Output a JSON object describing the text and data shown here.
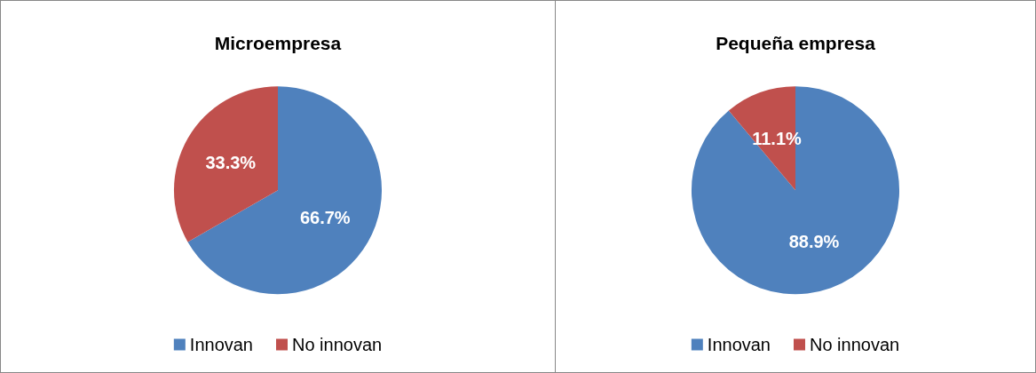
{
  "chart_data": [
    {
      "type": "pie",
      "title": "Microempresa",
      "categories": [
        "Innovan",
        "No innovan"
      ],
      "values": [
        66.7,
        33.3
      ],
      "colors": [
        "#4f81bd",
        "#c0504d"
      ],
      "value_labels": [
        "66.7%",
        "33.3%"
      ],
      "legend": "bottom"
    },
    {
      "type": "pie",
      "title": "Pequeña empresa",
      "categories": [
        "Innovan",
        "No innovan"
      ],
      "values": [
        88.9,
        11.1
      ],
      "colors": [
        "#4f81bd",
        "#c0504d"
      ],
      "value_labels": [
        "88.9%",
        "11.1%"
      ],
      "legend": "bottom"
    }
  ]
}
